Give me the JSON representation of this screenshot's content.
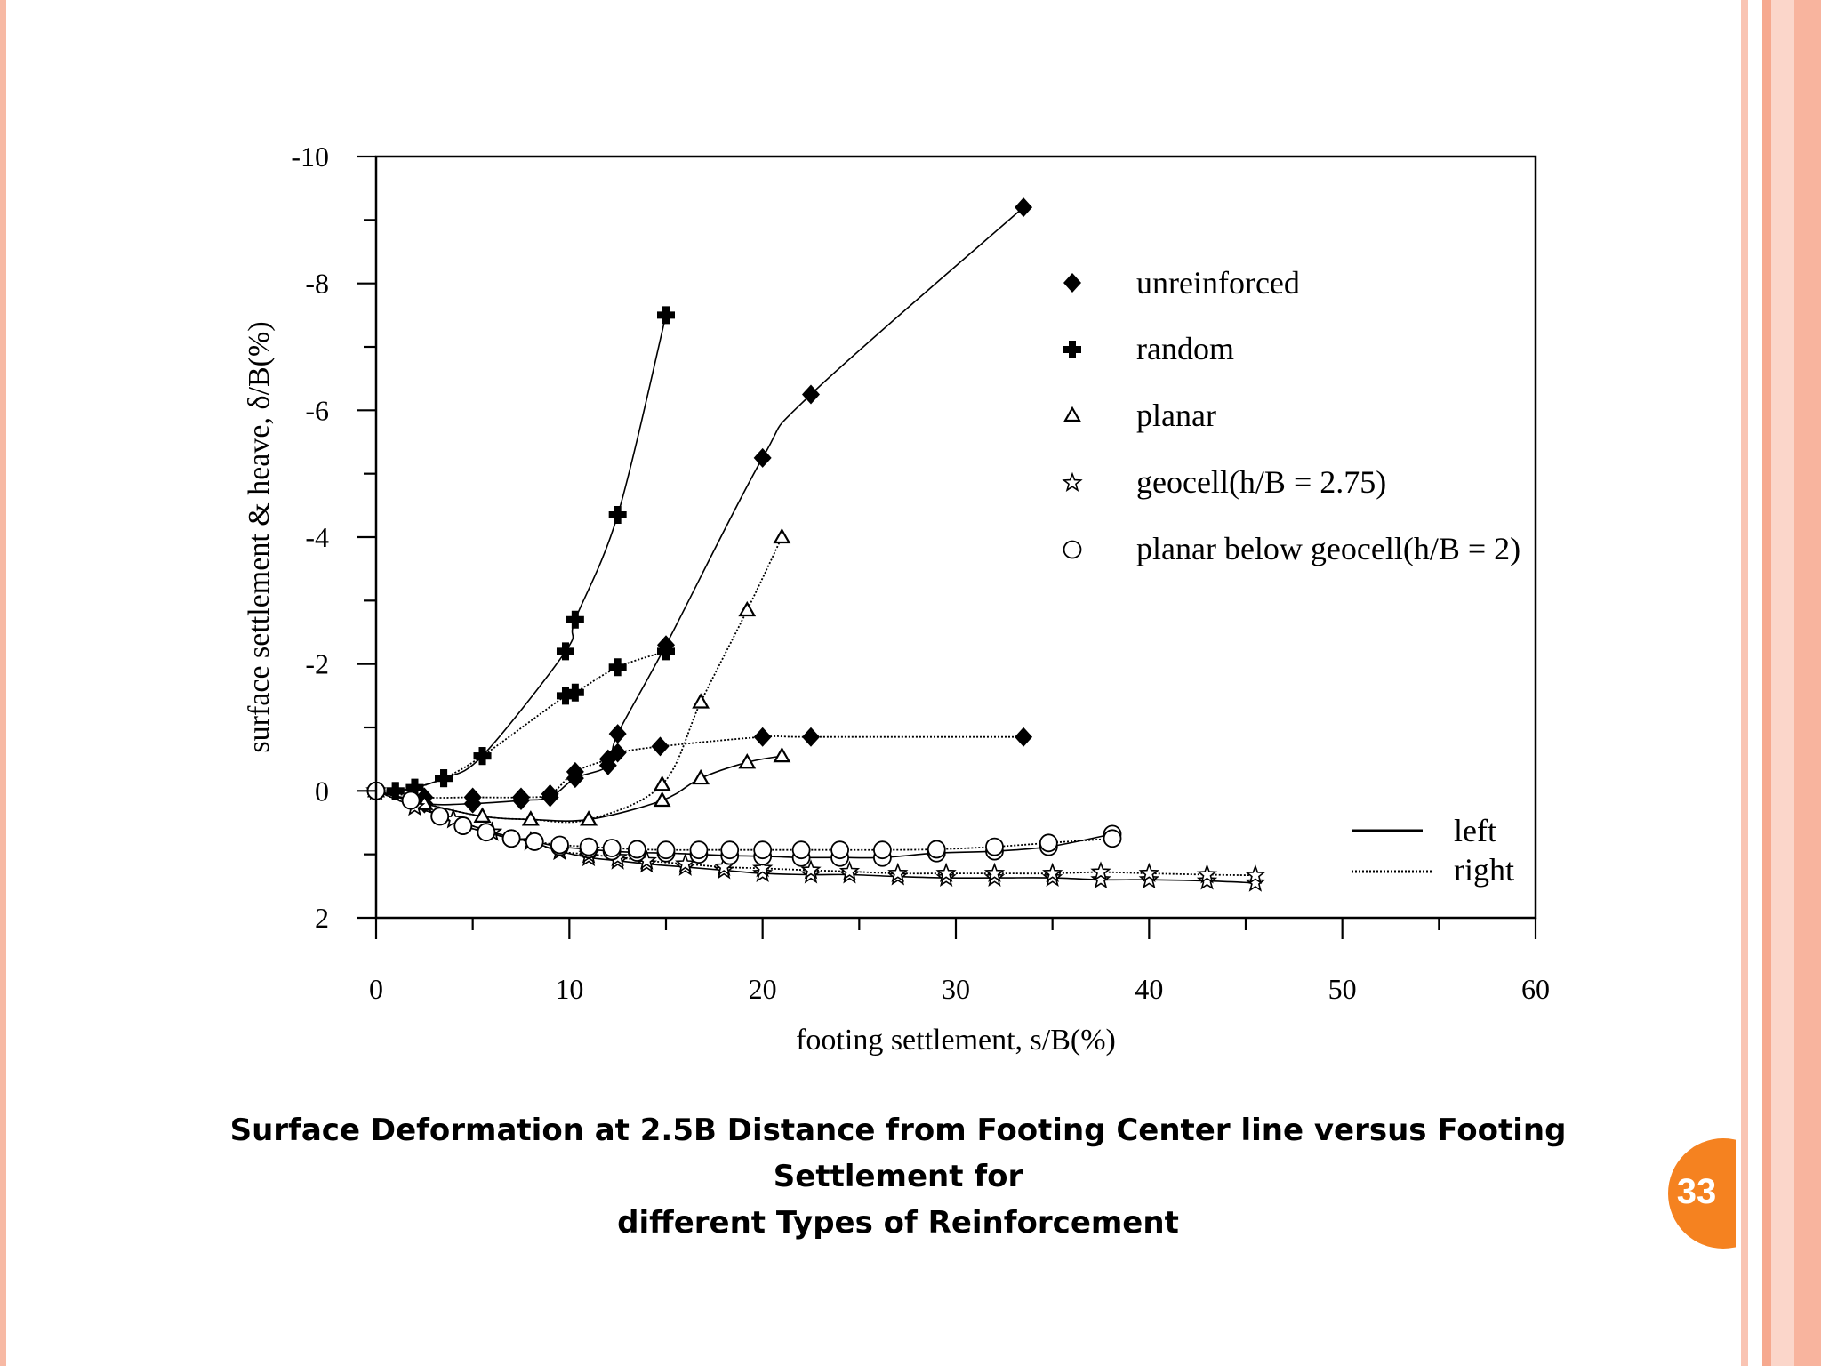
{
  "slide": {
    "caption_line1": "Surface Deformation at 2.5B Distance from Footing Center line versus Footing Settlement for",
    "caption_line2": "different Types of Reinforcement",
    "page_number": "33",
    "accent_color": "#f58220",
    "border_color": "#f7b9a4"
  },
  "chart_data": {
    "type": "scatter",
    "title": "",
    "xlabel": "footing settlement, s/B(%)",
    "ylabel": "surface settlement & heave, δ/B(%)",
    "xlim": [
      0,
      60
    ],
    "ylim": [
      2,
      -10
    ],
    "x_ticks": [
      0,
      10,
      20,
      30,
      40,
      50,
      60
    ],
    "y_ticks": [
      -10,
      -8,
      -6,
      -4,
      -2,
      0,
      2
    ],
    "grid": false,
    "legend_position": "top-right",
    "line_legend_position": "bottom-right",
    "line_styles": [
      {
        "name": "left",
        "style": "solid"
      },
      {
        "name": "right",
        "style": "dotted"
      }
    ],
    "series": [
      {
        "name": "unreinforced",
        "marker": "diamond",
        "side": "left",
        "points": [
          [
            0,
            0
          ],
          [
            2.5,
            0.2
          ],
          [
            5,
            0.2
          ],
          [
            7.5,
            0.15
          ],
          [
            9,
            0.1
          ],
          [
            10.3,
            -0.2
          ],
          [
            12,
            -0.4
          ],
          [
            12.5,
            -0.9
          ],
          [
            15,
            -2.3
          ],
          [
            20,
            -5.25
          ],
          [
            22.5,
            -6.25
          ],
          [
            33.5,
            -9.2
          ]
        ]
      },
      {
        "name": "unreinforced",
        "marker": "diamond",
        "side": "right",
        "points": [
          [
            0,
            0
          ],
          [
            2.5,
            0.1
          ],
          [
            5,
            0.1
          ],
          [
            7.5,
            0.1
          ],
          [
            9,
            0.05
          ],
          [
            10.3,
            -0.3
          ],
          [
            12,
            -0.5
          ],
          [
            12.5,
            -0.6
          ],
          [
            14.7,
            -0.7
          ],
          [
            20,
            -0.85
          ],
          [
            22.5,
            -0.85
          ],
          [
            33.5,
            -0.85
          ]
        ]
      },
      {
        "name": "random",
        "marker": "cross",
        "side": "left",
        "points": [
          [
            0,
            0
          ],
          [
            1,
            0
          ],
          [
            2,
            -0.05
          ],
          [
            3.5,
            -0.2
          ],
          [
            5.5,
            -0.55
          ],
          [
            9.8,
            -2.2
          ],
          [
            10.3,
            -2.7
          ],
          [
            12.5,
            -4.35
          ],
          [
            15,
            -7.5
          ]
        ]
      },
      {
        "name": "random",
        "marker": "cross",
        "side": "right",
        "points": [
          [
            0,
            0
          ],
          [
            1,
            0
          ],
          [
            2,
            -0.05
          ],
          [
            3.5,
            -0.2
          ],
          [
            5.5,
            -0.55
          ],
          [
            9.8,
            -1.5
          ],
          [
            10.3,
            -1.55
          ],
          [
            12.5,
            -1.95
          ],
          [
            15,
            -2.2
          ]
        ]
      },
      {
        "name": "planar",
        "marker": "triangle",
        "side": "left",
        "points": [
          [
            0,
            0
          ],
          [
            2.5,
            0.2
          ],
          [
            5.5,
            0.4
          ],
          [
            8,
            0.45
          ],
          [
            11,
            0.45
          ],
          [
            14.8,
            0.15
          ],
          [
            16.8,
            -0.2
          ],
          [
            19.2,
            -0.45
          ],
          [
            21,
            -0.55
          ]
        ]
      },
      {
        "name": "planar",
        "marker": "triangle",
        "side": "right",
        "points": [
          [
            0,
            0
          ],
          [
            2.5,
            0.2
          ],
          [
            5.5,
            0.4
          ],
          [
            8,
            0.45
          ],
          [
            11,
            0.45
          ],
          [
            14.8,
            -0.1
          ],
          [
            16.8,
            -1.4
          ],
          [
            19.2,
            -2.85
          ],
          [
            21,
            -4.0
          ]
        ]
      },
      {
        "name": "geocell(h/B = 2.75)",
        "marker": "star",
        "side": "left",
        "points": [
          [
            0,
            0
          ],
          [
            2,
            0.25
          ],
          [
            4,
            0.45
          ],
          [
            6,
            0.65
          ],
          [
            8,
            0.8
          ],
          [
            9.5,
            0.95
          ],
          [
            11,
            1.05
          ],
          [
            12.5,
            1.1
          ],
          [
            14,
            1.15
          ],
          [
            16,
            1.2
          ],
          [
            18,
            1.25
          ],
          [
            20,
            1.3
          ],
          [
            22.5,
            1.32
          ],
          [
            24.5,
            1.32
          ],
          [
            27,
            1.35
          ],
          [
            29.5,
            1.37
          ],
          [
            32,
            1.37
          ],
          [
            35,
            1.37
          ],
          [
            37.5,
            1.4
          ],
          [
            40,
            1.4
          ],
          [
            43,
            1.42
          ],
          [
            45.5,
            1.45
          ]
        ]
      },
      {
        "name": "geocell(h/B = 2.75)",
        "marker": "star",
        "side": "right",
        "points": [
          [
            0,
            0
          ],
          [
            2,
            0.25
          ],
          [
            4,
            0.45
          ],
          [
            6,
            0.65
          ],
          [
            8,
            0.8
          ],
          [
            9.5,
            0.95
          ],
          [
            11,
            1.0
          ],
          [
            12.5,
            1.05
          ],
          [
            14,
            1.1
          ],
          [
            16,
            1.15
          ],
          [
            18,
            1.2
          ],
          [
            20,
            1.22
          ],
          [
            22.5,
            1.25
          ],
          [
            24.5,
            1.27
          ],
          [
            27,
            1.3
          ],
          [
            29.5,
            1.3
          ],
          [
            32,
            1.3
          ],
          [
            35,
            1.3
          ],
          [
            37.5,
            1.28
          ],
          [
            40,
            1.3
          ],
          [
            43,
            1.32
          ],
          [
            45.5,
            1.33
          ]
        ]
      },
      {
        "name": "planar below geocell(h/B = 2)",
        "marker": "circle",
        "side": "left",
        "points": [
          [
            0,
            0
          ],
          [
            1.8,
            0.15
          ],
          [
            3.3,
            0.4
          ],
          [
            4.5,
            0.55
          ],
          [
            5.7,
            0.65
          ],
          [
            7,
            0.75
          ],
          [
            8.2,
            0.8
          ],
          [
            9.5,
            0.88
          ],
          [
            11,
            0.92
          ],
          [
            12.2,
            0.95
          ],
          [
            13.5,
            0.97
          ],
          [
            15,
            0.98
          ],
          [
            16.7,
            1.0
          ],
          [
            18.3,
            1.02
          ],
          [
            20,
            1.03
          ],
          [
            22,
            1.05
          ],
          [
            24,
            1.05
          ],
          [
            26.2,
            1.05
          ],
          [
            29,
            0.98
          ],
          [
            32,
            0.95
          ],
          [
            34.8,
            0.88
          ],
          [
            38.1,
            0.68
          ]
        ]
      },
      {
        "name": "planar below geocell(h/B = 2)",
        "marker": "circle",
        "side": "right",
        "points": [
          [
            0,
            0
          ],
          [
            1.8,
            0.15
          ],
          [
            3.3,
            0.4
          ],
          [
            4.5,
            0.55
          ],
          [
            5.7,
            0.65
          ],
          [
            7,
            0.75
          ],
          [
            8.2,
            0.8
          ],
          [
            9.5,
            0.85
          ],
          [
            11,
            0.88
          ],
          [
            12.2,
            0.9
          ],
          [
            13.5,
            0.92
          ],
          [
            15,
            0.93
          ],
          [
            16.7,
            0.93
          ],
          [
            18.3,
            0.93
          ],
          [
            20,
            0.93
          ],
          [
            22,
            0.93
          ],
          [
            24,
            0.93
          ],
          [
            26.2,
            0.93
          ],
          [
            29,
            0.92
          ],
          [
            32,
            0.88
          ],
          [
            34.8,
            0.82
          ],
          [
            38.1,
            0.75
          ]
        ]
      }
    ]
  }
}
